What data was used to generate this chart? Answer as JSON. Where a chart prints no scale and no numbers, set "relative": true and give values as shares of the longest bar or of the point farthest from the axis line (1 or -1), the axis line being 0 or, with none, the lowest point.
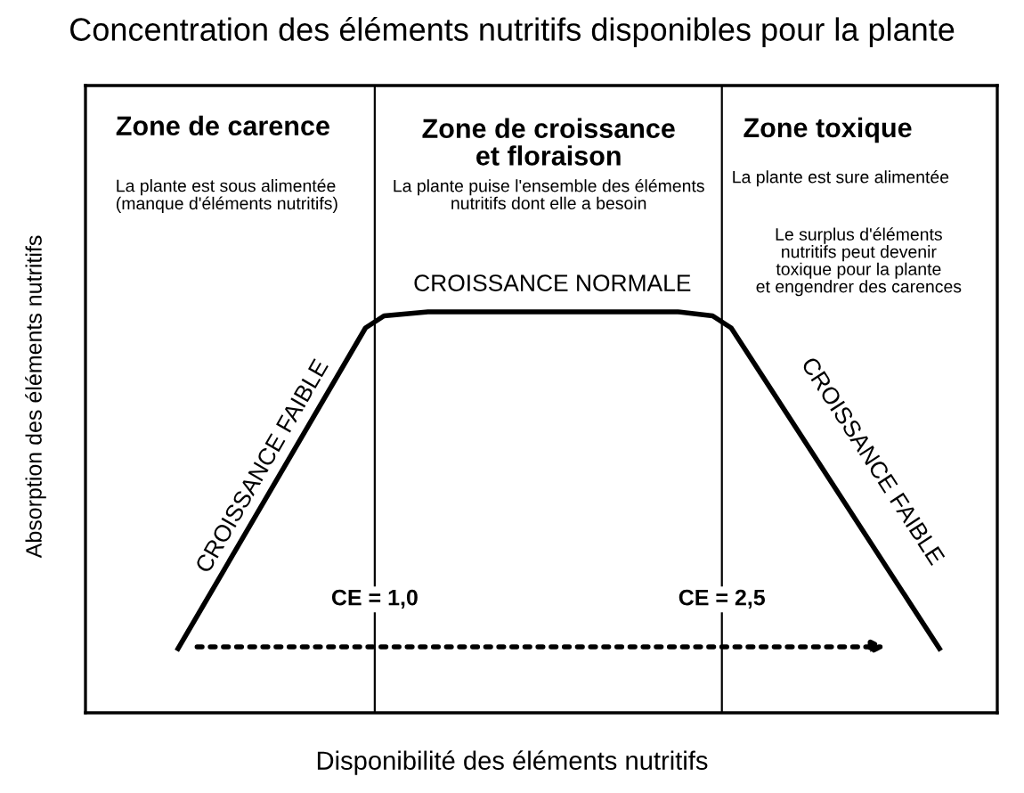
{
  "chart_data": {
    "type": "line",
    "relative": true,
    "title": "Concentration des éléments nutritifs disponibles pour la plante",
    "xlabel": "Disponibilité des éléments nutritifs",
    "ylabel": "Absorption des éléments nutritifs",
    "x": [
      0.15,
      0.96,
      1.04,
      1.23,
      2.31,
      2.46,
      2.54,
      3.44
    ],
    "series": [
      {
        "color": "#000000",
        "values": [
          0.16,
          0.96,
          0.99,
          1,
          1,
          0.99,
          0.96,
          0.16
        ]
      }
    ],
    "xlim": [
      -0.25,
      3.69
    ],
    "xticks": [
      {
        "value": 1.0,
        "label": "CE = 1,0"
      },
      {
        "value": 2.5,
        "label": "CE = 2,5"
      }
    ],
    "tick_labels": "x",
    "marker": "none",
    "line_style": "solid",
    "ref_lines": [
      {
        "axis": "x",
        "value": 1.0,
        "color": "#000000"
      },
      {
        "axis": "x",
        "value": 2.5,
        "color": "#000000"
      }
    ],
    "annotations": [
      "Zone de carence",
      "La plante est sous alimentée\n(manque d'éléments nutritifs)",
      "Zone de croissance\net floraison",
      "La plante puise l'ensemble des éléments\nnutritifs dont elle a besoin",
      "Zone toxique",
      "La plante est sure alimentée",
      "Le surplus d'éléments\nnutritifs peut devenir\ntoxique pour la plante\net engendrer des carences",
      "CROISSANCE FAIBLE",
      "CROISSANCE NORMALE",
      "CROISSANCE FAIBLE"
    ]
  }
}
